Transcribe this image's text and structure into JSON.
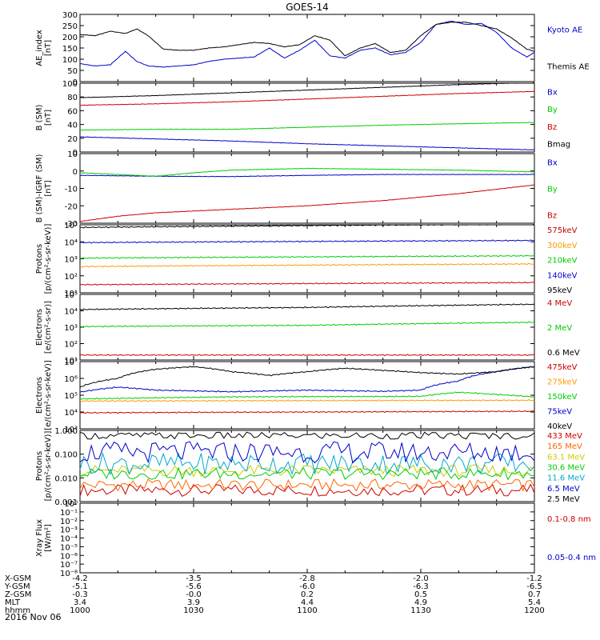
{
  "figure": {
    "title": "GOES-14",
    "date": "2016 Nov 06"
  },
  "chart_data": [
    {
      "type": "line",
      "ylabel": "AE_index",
      "yunit": "[nT]",
      "ylim": [
        0,
        300
      ],
      "yticks": [
        "0",
        "50",
        "100",
        "150",
        "200",
        "250",
        "300"
      ],
      "series": [
        {
          "name": "Kyoto AE",
          "color": "#0000cc",
          "x": [
            0,
            2,
            4,
            6,
            7.5,
            9,
            11,
            13,
            15,
            17,
            19,
            21,
            23,
            25,
            27,
            29,
            31,
            33,
            35,
            37,
            39,
            41,
            43,
            45,
            47,
            49,
            51,
            53,
            55,
            57,
            59,
            60
          ],
          "values": [
            80,
            70,
            75,
            135,
            90,
            70,
            65,
            70,
            75,
            90,
            100,
            105,
            110,
            150,
            105,
            140,
            185,
            115,
            105,
            140,
            150,
            120,
            130,
            175,
            255,
            270,
            255,
            260,
            220,
            150,
            110,
            130
          ]
        },
        {
          "name": "Themis AE",
          "color": "#000000",
          "x": [
            0,
            2,
            4,
            6,
            7.5,
            9,
            11,
            13,
            15,
            17,
            19,
            21,
            23,
            25,
            27,
            29,
            31,
            33,
            35,
            37,
            39,
            41,
            43,
            45,
            47,
            49,
            51,
            53,
            55,
            57,
            59,
            60
          ],
          "values": [
            210,
            205,
            225,
            215,
            235,
            205,
            145,
            140,
            140,
            150,
            155,
            165,
            175,
            170,
            155,
            165,
            205,
            185,
            115,
            150,
            170,
            130,
            140,
            205,
            255,
            265,
            265,
            250,
            235,
            195,
            145,
            135
          ]
        }
      ]
    },
    {
      "type": "line",
      "ylabel": "B (SM)",
      "yunit": "[nT]",
      "ylim": [
        0,
        100
      ],
      "yticks": [
        "0",
        "20",
        "40",
        "60",
        "80",
        "100"
      ],
      "series": [
        {
          "name": "Bx",
          "color": "#0000cc",
          "x": [
            0,
            10,
            20,
            30,
            40,
            50,
            60
          ],
          "values": [
            22,
            19,
            16,
            12,
            9,
            6,
            3
          ]
        },
        {
          "name": "By",
          "color": "#00cc00",
          "x": [
            0,
            10,
            20,
            30,
            40,
            50,
            60
          ],
          "values": [
            32,
            33,
            33,
            36,
            39,
            41,
            43
          ]
        },
        {
          "name": "Bz",
          "color": "#cc0000",
          "x": [
            0,
            10,
            20,
            30,
            40,
            50,
            60
          ],
          "values": [
            68,
            70,
            73,
            77,
            81,
            85,
            88
          ]
        },
        {
          "name": "Bmag",
          "color": "#000000",
          "x": [
            0,
            10,
            20,
            30,
            40,
            50,
            60
          ],
          "values": [
            79,
            82,
            86,
            90,
            94,
            98,
            101
          ]
        }
      ]
    },
    {
      "type": "line",
      "ylabel": "B (SM)-IGRF (SM)",
      "yunit": "[nT]",
      "ylim": [
        -30,
        10
      ],
      "yticks": [
        "-30",
        "-20",
        "-10",
        "0",
        "10"
      ],
      "series": [
        {
          "name": "Bx",
          "color": "#0000cc",
          "x": [
            0,
            10,
            20,
            30,
            40,
            50,
            60
          ],
          "values": [
            -2.5,
            -3,
            -3.2,
            -2.5,
            -2,
            -2,
            -2
          ]
        },
        {
          "name": "By",
          "color": "#00cc00",
          "x": [
            0,
            5,
            10,
            15,
            20,
            30,
            40,
            50,
            60
          ],
          "values": [
            -1,
            -2,
            -3,
            -1,
            0.5,
            1.5,
            1,
            0.5,
            -0.5
          ]
        },
        {
          "name": "Bz",
          "color": "#cc0000",
          "x": [
            0,
            5,
            10,
            20,
            30,
            40,
            50,
            60
          ],
          "values": [
            -29,
            -26,
            -24,
            -22,
            -20,
            -17,
            -13,
            -8
          ]
        }
      ]
    },
    {
      "type": "line",
      "ylabel": "Protons",
      "yunit": "[p/(cm²-s-sr-keV)]",
      "yscale": "log",
      "ylim": [
        10,
        100000
      ],
      "yticks": [
        "10¹",
        "10²",
        "10³",
        "10⁴",
        "10⁵"
      ],
      "series": [
        {
          "name": "575keV",
          "color": "#cc0000",
          "x": [
            0,
            60
          ],
          "values": [
            30,
            40
          ]
        },
        {
          "name": "300keV",
          "color": "#ff9900",
          "x": [
            0,
            60
          ],
          "values": [
            350,
            500
          ]
        },
        {
          "name": "210keV",
          "color": "#00cc00",
          "x": [
            0,
            60
          ],
          "values": [
            1100,
            1500
          ]
        },
        {
          "name": "140keV",
          "color": "#0000cc",
          "x": [
            0,
            60
          ],
          "values": [
            9000,
            12000
          ]
        },
        {
          "name": "95keV",
          "color": "#000000",
          "x": [
            0,
            30,
            60
          ],
          "values": [
            70000,
            90000,
            110000
          ]
        }
      ]
    },
    {
      "type": "line",
      "ylabel": "Electrons",
      "yunit": "[e/(cm²-s-sr)]",
      "yscale": "log",
      "ylim": [
        10,
        100000
      ],
      "yticks": [
        "10¹",
        "10²",
        "10³",
        "10⁴",
        "10⁵"
      ],
      "series": [
        {
          "name": "4 MeV",
          "color": "#cc0000",
          "x": [
            0,
            60
          ],
          "values": [
            20,
            20
          ]
        },
        {
          "name": "2 MeV",
          "color": "#00cc00",
          "x": [
            0,
            30,
            60
          ],
          "values": [
            1100,
            1300,
            2000
          ]
        },
        {
          "name": "0.6 MeV",
          "color": "#000000",
          "x": [
            0,
            30,
            60
          ],
          "values": [
            12000,
            16000,
            25000
          ]
        }
      ]
    },
    {
      "type": "line",
      "ylabel": "Electrons",
      "yunit": "[e/(cm²-s-sr-keV)]",
      "yscale": "log",
      "ylim": [
        1000,
        10000000
      ],
      "yticks": [
        "10³",
        "10⁴",
        "10⁵",
        "10⁶",
        "10⁷"
      ],
      "series": [
        {
          "name": "475keV",
          "color": "#cc0000",
          "x": [
            0,
            60
          ],
          "values": [
            9000,
            11000
          ]
        },
        {
          "name": "275keV",
          "color": "#ff9900",
          "x": [
            0,
            60
          ],
          "values": [
            45000,
            50000
          ]
        },
        {
          "name": "150keV",
          "color": "#00cc00",
          "x": [
            0,
            20,
            45,
            50,
            55,
            60
          ],
          "values": [
            60000,
            80000,
            85000,
            150000,
            110000,
            80000
          ]
        },
        {
          "name": "75keV",
          "color": "#0000cc",
          "x": [
            0,
            5,
            10,
            20,
            30,
            40,
            45,
            50,
            55,
            60
          ],
          "values": [
            150000,
            300000,
            200000,
            160000,
            200000,
            170000,
            200000,
            700000,
            2500000,
            5000000
          ]
        },
        {
          "name": "40keV",
          "color": "#000000",
          "x": [
            0,
            5,
            10,
            15,
            20,
            25,
            30,
            35,
            40,
            45,
            50,
            55,
            60
          ],
          "values": [
            300000,
            1000000,
            3500000,
            5000000,
            2500000,
            1500000,
            2500000,
            4000000,
            3000000,
            2200000,
            1800000,
            2500000,
            5000000
          ]
        }
      ]
    },
    {
      "type": "line",
      "ylabel": "Protons",
      "yunit": "[p/(cm²-s-sr-keV)]",
      "yscale": "log",
      "ylim": [
        0.001,
        1.0
      ],
      "yticks": [
        "0.001",
        "0.010",
        "0.100",
        "1.000"
      ],
      "series": [
        {
          "name": "433 MeV",
          "color": "#cc0000",
          "level": 0.003
        },
        {
          "name": "165 MeV",
          "color": "#ff6600",
          "level": 0.005
        },
        {
          "name": "63.1 MeV",
          "color": "#cccc00",
          "level": 0.02
        },
        {
          "name": "30.6 MeV",
          "color": "#00cc00",
          "level": 0.015
        },
        {
          "name": "11.6 MeV",
          "color": "#00aacc",
          "level": 0.04
        },
        {
          "name": "6.5 MeV",
          "color": "#0000cc",
          "level": 0.12
        },
        {
          "name": "2.5 MeV",
          "color": "#000000",
          "level": 0.6
        }
      ]
    },
    {
      "type": "line",
      "ylabel": "Xray Flux",
      "yunit": "[W/m²]",
      "yscale": "log",
      "ylim": [
        1e-09,
        1
      ],
      "yticks": [
        "10⁻⁸",
        "10⁻⁷",
        "10⁻⁶",
        "10⁻⁵",
        "10⁻⁴",
        "10⁻³",
        "10⁻²",
        "10⁻¹",
        "10⁰"
      ],
      "series": [
        {
          "name": "0.1-0.8 nm",
          "color": "#cc0000"
        },
        {
          "name": "0.05-0.4 nm",
          "color": "#0000cc"
        }
      ]
    }
  ],
  "xaxis": {
    "rows": [
      {
        "label": "X-GSM",
        "values": [
          "-4.2",
          "-3.5",
          "-2.8",
          "-2.0",
          "-1.2"
        ]
      },
      {
        "label": "Y-GSM",
        "values": [
          "-5.1",
          "-5.6",
          "-6.0",
          "-6.3",
          "-6.5"
        ]
      },
      {
        "label": "Z-GSM",
        "values": [
          "-0.3",
          "-0.0",
          "0.2",
          "0.5",
          "0.7"
        ]
      },
      {
        "label": "MLT",
        "values": [
          "3.4",
          "3.9",
          "4.4",
          "4.9",
          "5.4"
        ]
      },
      {
        "label": "hhmm",
        "values": [
          "1000",
          "1030",
          "1100",
          "1130",
          "1200"
        ]
      }
    ]
  }
}
